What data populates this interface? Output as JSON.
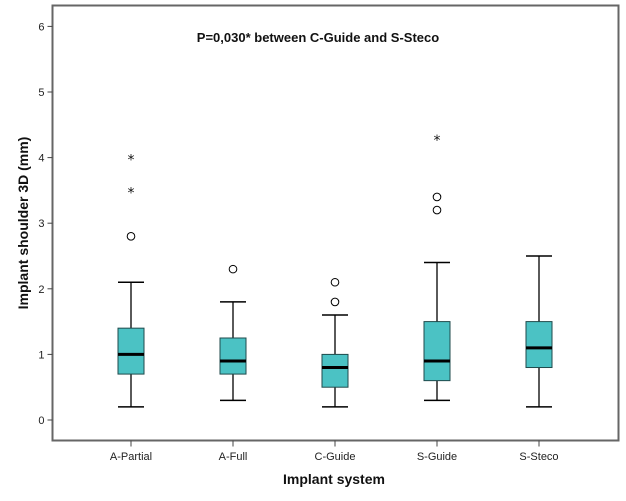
{
  "chart_data": {
    "type": "boxplot",
    "title": "",
    "annotation": "P=0,030* between C-Guide and S-Steco",
    "xlabel": "Implant system",
    "ylabel": "Implant shoulder 3D (mm)",
    "ylim": [
      -0.3,
      6.35
    ],
    "yticks": [
      0,
      1,
      2,
      3,
      4,
      5,
      6
    ],
    "grid": false,
    "box_color": "#4bc2c4",
    "categories": [
      "A-Partial",
      "A-Full",
      "C-Guide",
      "S-Guide",
      "S-Steco"
    ],
    "boxes": [
      {
        "name": "A-Partial",
        "whisker_low": 0.2,
        "q1": 0.7,
        "median": 1.0,
        "q3": 1.4,
        "whisker_high": 2.1,
        "outliers": [
          2.8
        ],
        "extremes": [
          3.5,
          4.0
        ]
      },
      {
        "name": "A-Full",
        "whisker_low": 0.3,
        "q1": 0.7,
        "median": 0.9,
        "q3": 1.25,
        "whisker_high": 1.8,
        "outliers": [
          2.3
        ],
        "extremes": []
      },
      {
        "name": "C-Guide",
        "whisker_low": 0.2,
        "q1": 0.5,
        "median": 0.8,
        "q3": 1.0,
        "whisker_high": 1.6,
        "outliers": [
          1.8,
          2.1
        ],
        "extremes": []
      },
      {
        "name": "S-Guide",
        "whisker_low": 0.3,
        "q1": 0.6,
        "median": 0.9,
        "q3": 1.5,
        "whisker_high": 2.4,
        "outliers": [
          3.2,
          3.4
        ],
        "extremes": [
          4.3
        ]
      },
      {
        "name": "S-Steco",
        "whisker_low": 0.2,
        "q1": 0.8,
        "median": 1.1,
        "q3": 1.5,
        "whisker_high": 2.5,
        "outliers": [],
        "extremes": []
      }
    ]
  }
}
